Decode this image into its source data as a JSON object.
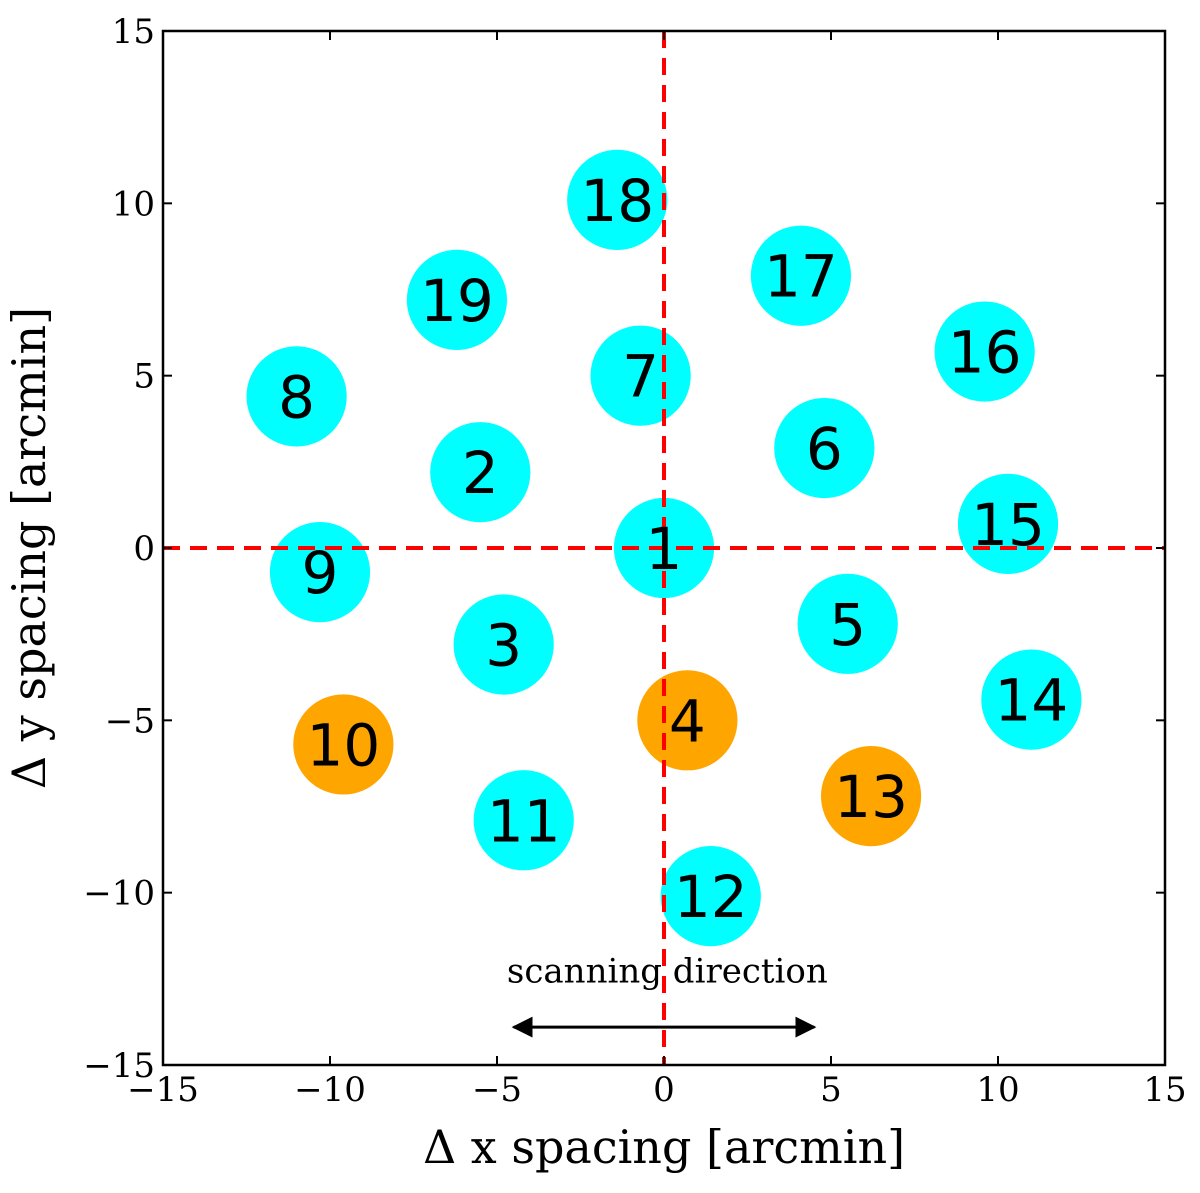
{
  "chart_data": {
    "type": "scatter",
    "title": "",
    "xlabel": "Δ x spacing [arcmin]",
    "ylabel": "Δ y spacing [arcmin]",
    "xlim": [
      -15,
      15
    ],
    "ylim": [
      -15,
      15
    ],
    "xticks": [
      -15,
      -10,
      -5,
      0,
      5,
      10,
      15
    ],
    "yticks": [
      -15,
      -10,
      -5,
      0,
      5,
      10,
      15
    ],
    "xtick_labels": [
      "−15",
      "−10",
      "−5",
      "0",
      "5",
      "10",
      "15"
    ],
    "ytick_labels": [
      "−15",
      "−10",
      "−5",
      "0",
      "5",
      "10",
      "15"
    ],
    "grid": false,
    "reference_lines": {
      "x": 0,
      "y": 0,
      "color": "#ff0000",
      "style": "dashed"
    },
    "colors": {
      "normal": "#00ffff",
      "flagged": "#ffa500"
    },
    "beam_radius": 1.5,
    "beams": [
      {
        "label": "1",
        "x": 0.0,
        "y": 0.0,
        "flagged": false
      },
      {
        "label": "2",
        "x": -5.5,
        "y": 2.2,
        "flagged": false
      },
      {
        "label": "3",
        "x": -4.8,
        "y": -2.8,
        "flagged": false
      },
      {
        "label": "4",
        "x": 0.7,
        "y": -5.0,
        "flagged": true
      },
      {
        "label": "5",
        "x": 5.5,
        "y": -2.2,
        "flagged": false
      },
      {
        "label": "6",
        "x": 4.8,
        "y": 2.9,
        "flagged": false
      },
      {
        "label": "7",
        "x": -0.7,
        "y": 5.0,
        "flagged": false
      },
      {
        "label": "8",
        "x": -11.0,
        "y": 4.4,
        "flagged": false
      },
      {
        "label": "9",
        "x": -10.3,
        "y": -0.7,
        "flagged": false
      },
      {
        "label": "10",
        "x": -9.6,
        "y": -5.7,
        "flagged": true
      },
      {
        "label": "11",
        "x": -4.2,
        "y": -7.9,
        "flagged": false
      },
      {
        "label": "12",
        "x": 1.4,
        "y": -10.1,
        "flagged": false
      },
      {
        "label": "13",
        "x": 6.2,
        "y": -7.2,
        "flagged": true
      },
      {
        "label": "14",
        "x": 11.0,
        "y": -4.4,
        "flagged": false
      },
      {
        "label": "15",
        "x": 10.3,
        "y": 0.7,
        "flagged": false
      },
      {
        "label": "16",
        "x": 9.6,
        "y": 5.7,
        "flagged": false
      },
      {
        "label": "17",
        "x": 4.1,
        "y": 7.9,
        "flagged": false
      },
      {
        "label": "18",
        "x": -1.4,
        "y": 10.1,
        "flagged": false
      },
      {
        "label": "19",
        "x": -6.2,
        "y": 7.2,
        "flagged": false
      }
    ],
    "annotation": {
      "text": "scanning direction",
      "text_x": 0.1,
      "text_y": -12.6,
      "arrow_from_x": -4.5,
      "arrow_to_x": 4.5,
      "arrow_y": -13.9
    }
  }
}
